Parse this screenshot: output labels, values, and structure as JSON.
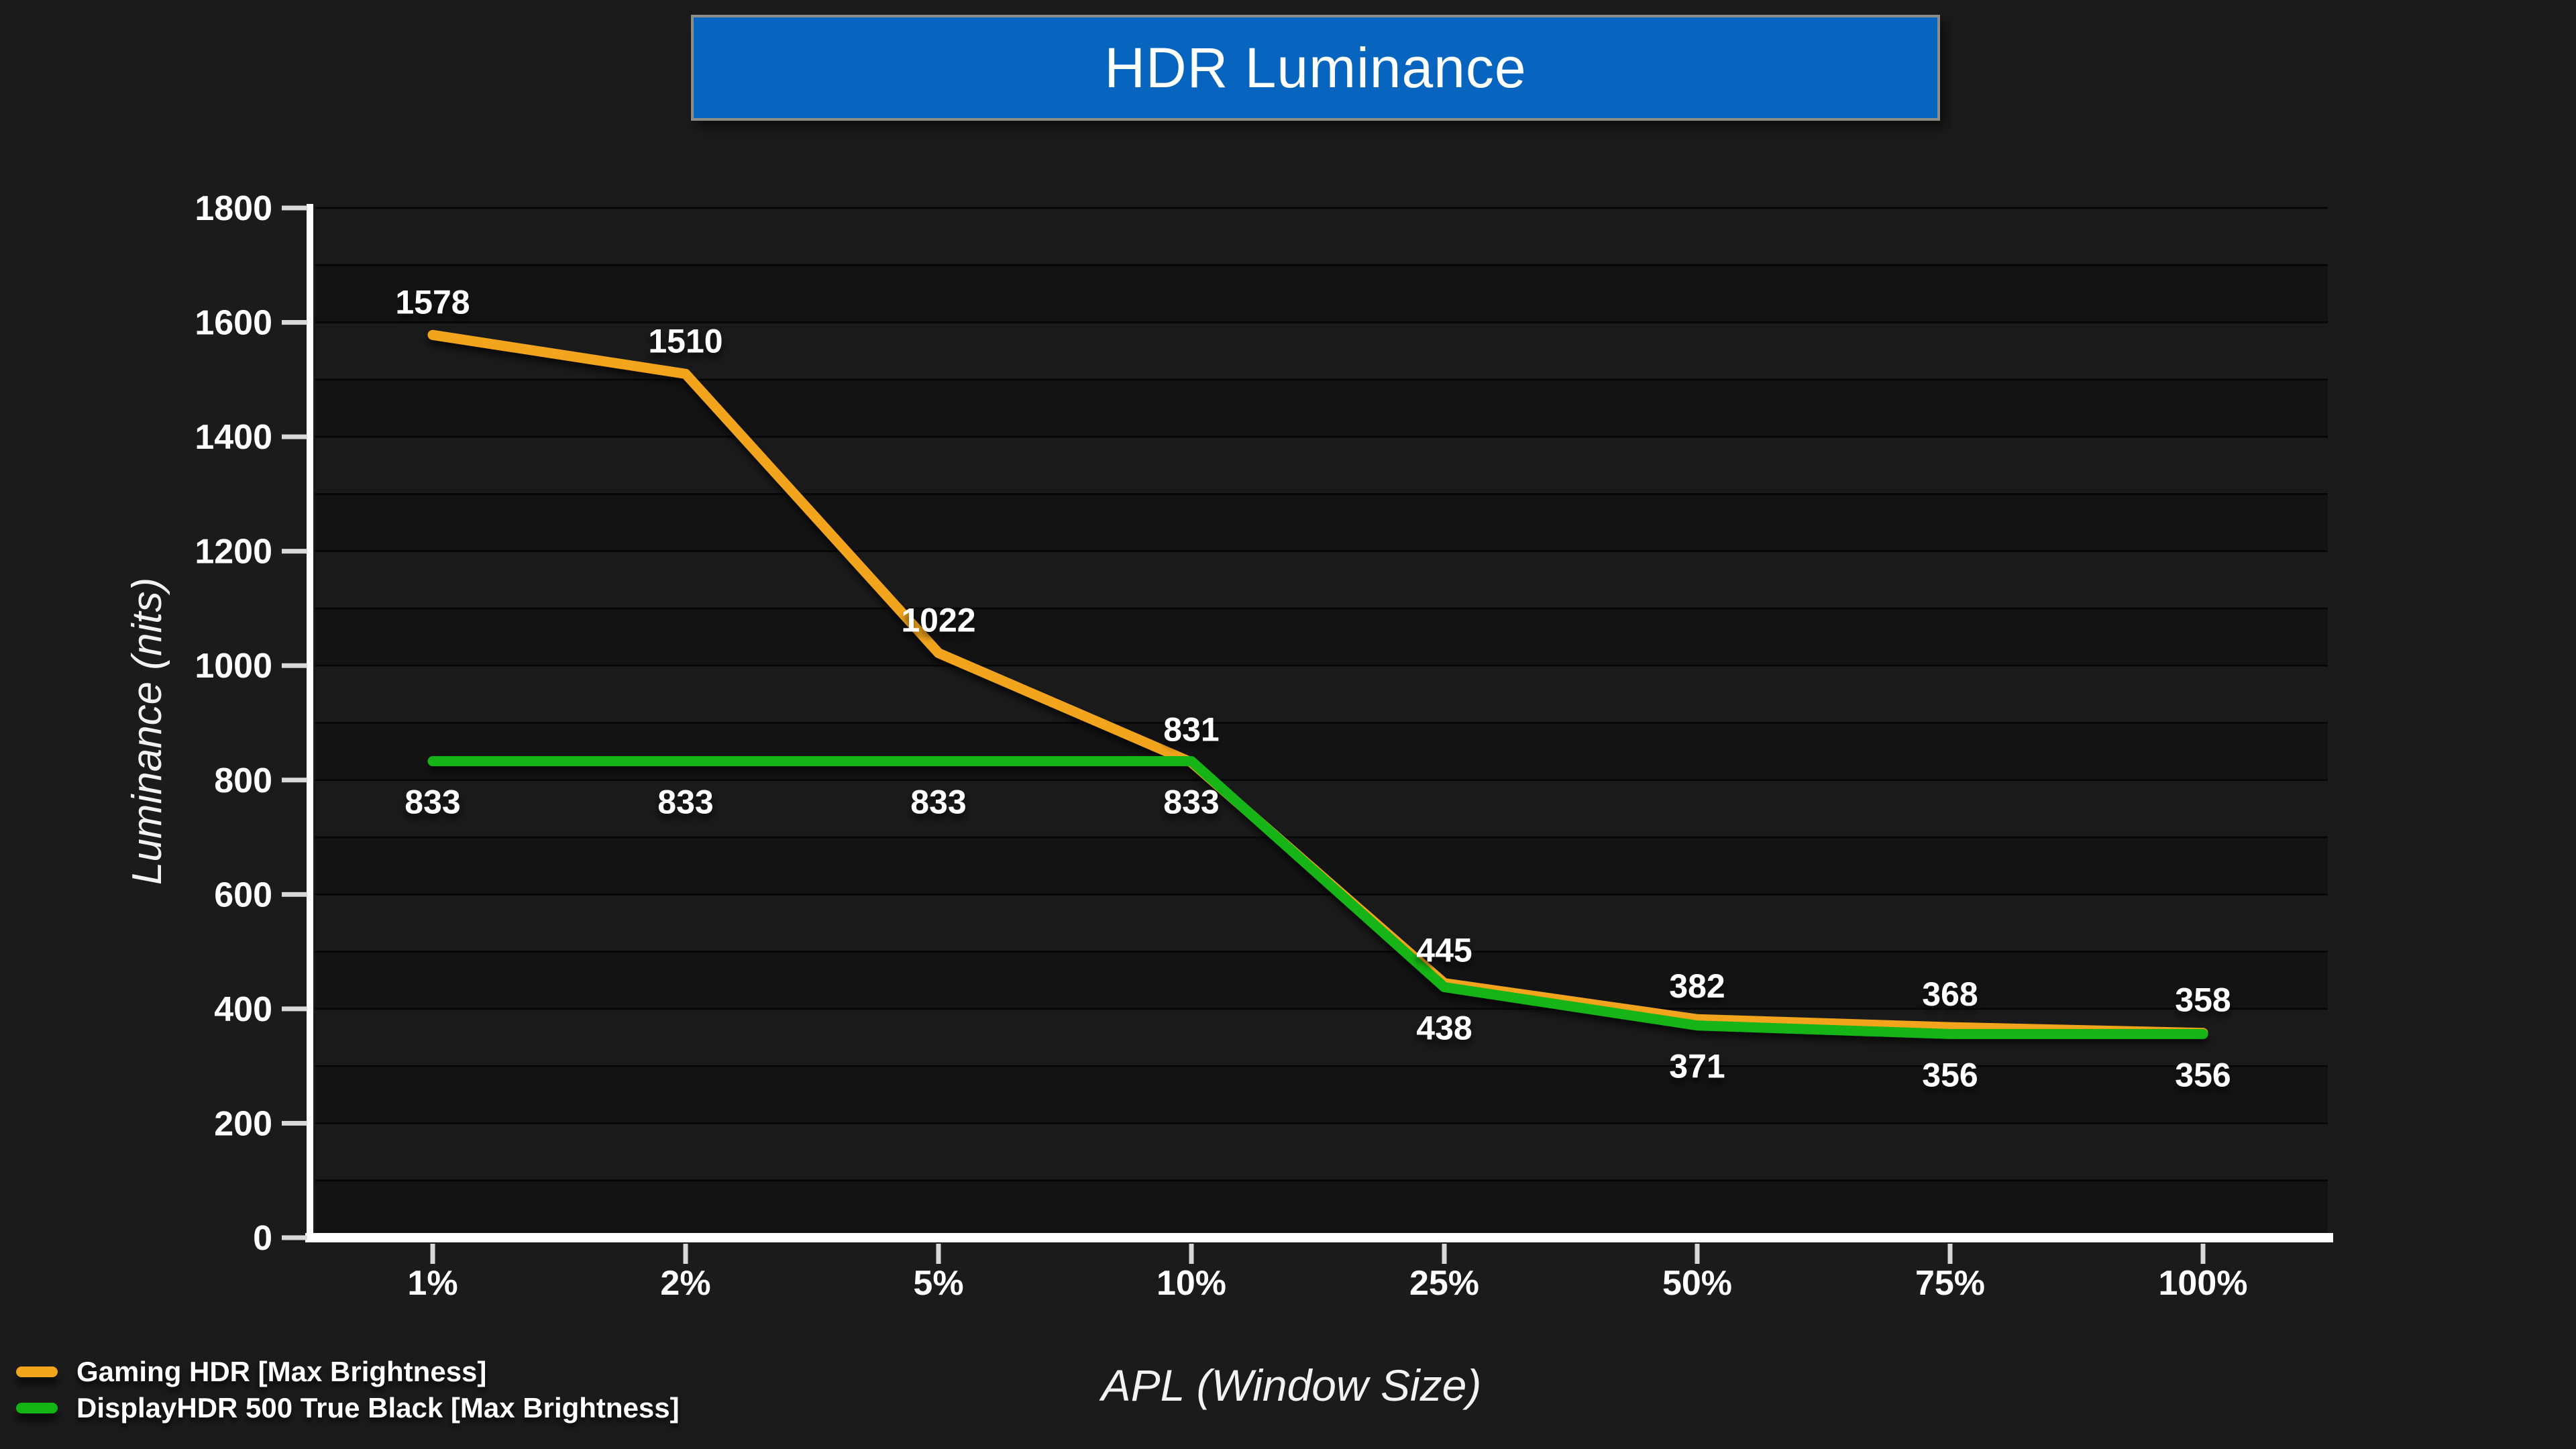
{
  "title": "HDR Luminance",
  "colors": {
    "background": "#1B1B1C",
    "banner_fill": "#0765BF",
    "banner_border": "#8D8D88",
    "band_light": "#1A1A1B",
    "band_dark": "#131314",
    "gridline": "#060607",
    "axis": "#FFFFFF",
    "tick": "#D9D9D9",
    "text": "#FFFFFF",
    "series_orange": "#F2A51C",
    "series_green": "#13B413"
  },
  "legend": {
    "items": [
      {
        "label": "Gaming HDR [Max Brightness]",
        "color": "#F2A51C"
      },
      {
        "label": "DisplayHDR 500 True Black [Max Brightness]",
        "color": "#13B413"
      }
    ]
  },
  "chart_data": {
    "type": "line",
    "title": "HDR Luminance",
    "xlabel": "APL (Window Size)",
    "ylabel": "Luminance (nits)",
    "categories": [
      "1%",
      "2%",
      "5%",
      "10%",
      "25%",
      "50%",
      "75%",
      "100%"
    ],
    "series": [
      {
        "name": "Gaming HDR [Max Brightness]",
        "color": "#F2A51C",
        "values": [
          1578,
          1510,
          1022,
          831,
          445,
          382,
          368,
          358
        ],
        "label_position": "above"
      },
      {
        "name": "DisplayHDR 500 True Black [Max Brightness]",
        "color": "#13B413",
        "values": [
          833,
          833,
          833,
          833,
          438,
          371,
          356,
          356
        ],
        "label_position": "below"
      }
    ],
    "ylim": [
      0,
      1800
    ],
    "y_tick_step": 200,
    "grid": "horizontal-minor-100",
    "legend_position": "bottom-left"
  }
}
